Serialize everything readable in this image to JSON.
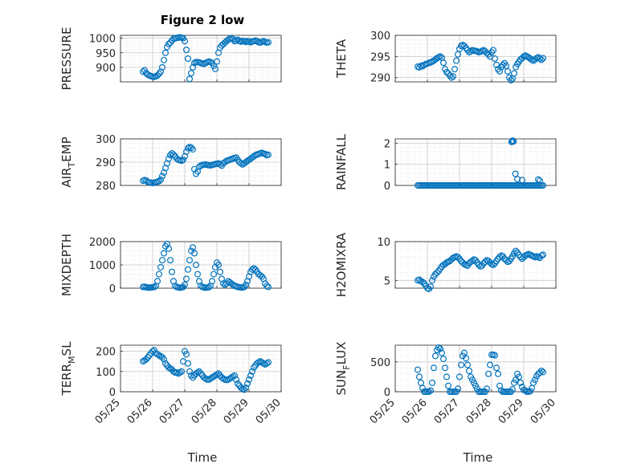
{
  "figure_title": "Figure 2 low",
  "x_axis": {
    "label": "Time",
    "ticks": [
      "05/25",
      "05/26",
      "05/27",
      "05/28",
      "05/29",
      "05/30"
    ],
    "xlim": [
      0,
      5
    ]
  },
  "colors": {
    "marker": "#0072bd",
    "grid": "#dcdcdc",
    "axis": "#262626"
  },
  "chart_data": [
    {
      "type": "scatter",
      "ylabel": "PRESSURE",
      "ylim": [
        850,
        1010
      ],
      "yticks": [
        900,
        950,
        1000
      ],
      "x": [
        0.7,
        0.75,
        0.8,
        0.85,
        0.9,
        0.95,
        1.0,
        1.05,
        1.1,
        1.15,
        1.2,
        1.25,
        1.3,
        1.35,
        1.4,
        1.45,
        1.5,
        1.55,
        1.6,
        1.65,
        1.7,
        1.75,
        1.8,
        1.85,
        1.9,
        1.95,
        2.0,
        2.05,
        2.1,
        2.15,
        2.2,
        2.25,
        2.3,
        2.35,
        2.4,
        2.45,
        2.5,
        2.55,
        2.6,
        2.65,
        2.7,
        2.75,
        2.8,
        2.85,
        2.9,
        2.95,
        3.0,
        3.05,
        3.1,
        3.15,
        3.2,
        3.25,
        3.3,
        3.35,
        3.4,
        3.45,
        3.5,
        3.55,
        3.6,
        3.65,
        3.7,
        3.75,
        3.8,
        3.85,
        3.9,
        3.95,
        4.0,
        4.05,
        4.1,
        4.15,
        4.2,
        4.25,
        4.3,
        4.35,
        4.4,
        4.45,
        4.5,
        4.55,
        4.6
      ],
      "y": [
        885,
        890,
        880,
        875,
        872,
        870,
        868,
        867,
        869,
        872,
        878,
        885,
        900,
        925,
        950,
        970,
        980,
        985,
        992,
        998,
        1000,
        1001,
        1002,
        1003,
        1002,
        1000,
        990,
        960,
        930,
        860,
        880,
        900,
        915,
        918,
        918,
        917,
        915,
        913,
        912,
        915,
        918,
        920,
        918,
        915,
        905,
        895,
        920,
        950,
        968,
        975,
        980,
        985,
        990,
        995,
        998,
        1000,
        997,
        990,
        992,
        995,
        990,
        988,
        991,
        990,
        987,
        990,
        988,
        986,
        989,
        990,
        992,
        990,
        986,
        985,
        988,
        990,
        987,
        985,
        986
      ]
    },
    {
      "type": "scatter",
      "ylabel": "THETA",
      "ylim": [
        289,
        300
      ],
      "yticks": [
        290,
        295,
        300
      ],
      "x": [
        0.7,
        0.75,
        0.8,
        0.85,
        0.9,
        0.95,
        1.0,
        1.05,
        1.1,
        1.15,
        1.2,
        1.25,
        1.3,
        1.35,
        1.4,
        1.45,
        1.5,
        1.55,
        1.6,
        1.65,
        1.7,
        1.75,
        1.8,
        1.85,
        1.9,
        1.95,
        2.0,
        2.05,
        2.1,
        2.15,
        2.2,
        2.25,
        2.3,
        2.35,
        2.4,
        2.45,
        2.5,
        2.55,
        2.6,
        2.65,
        2.7,
        2.75,
        2.8,
        2.85,
        2.9,
        2.95,
        3.0,
        3.05,
        3.1,
        3.15,
        3.2,
        3.25,
        3.3,
        3.35,
        3.4,
        3.45,
        3.5,
        3.55,
        3.6,
        3.65,
        3.7,
        3.75,
        3.8,
        3.85,
        3.9,
        3.95,
        4.0,
        4.05,
        4.1,
        4.15,
        4.2,
        4.25,
        4.3,
        4.35,
        4.4,
        4.45,
        4.5,
        4.55,
        4.6
      ],
      "y": [
        292.6,
        292.4,
        292.8,
        292.7,
        293.0,
        293.2,
        293.3,
        293.5,
        293.6,
        293.8,
        294.0,
        294.3,
        294.6,
        294.8,
        295.0,
        294.7,
        293.5,
        292.0,
        291.3,
        291.0,
        290.5,
        290.0,
        290.3,
        292.0,
        294.0,
        295.5,
        296.8,
        297.5,
        297.7,
        297.5,
        297.0,
        296.5,
        296.0,
        296.2,
        296.5,
        296.4,
        296.3,
        296.2,
        296.0,
        296.1,
        296.3,
        296.5,
        296.2,
        295.8,
        295.5,
        295.0,
        296.0,
        296.5,
        294.5,
        293.0,
        292.0,
        291.5,
        292.5,
        293.0,
        293.4,
        292.8,
        291.5,
        290.0,
        289.4,
        289.8,
        291.0,
        292.5,
        293.2,
        293.8,
        294.3,
        294.6,
        295.0,
        295.2,
        295.0,
        294.8,
        294.5,
        294.2,
        294.0,
        294.3,
        294.6,
        294.8,
        294.5,
        294.2,
        294.6
      ]
    },
    {
      "type": "scatter",
      "ylabel": "AIR_TEMP",
      "ylim": [
        280,
        300
      ],
      "yticks": [
        280,
        290,
        300
      ],
      "x": [
        0.7,
        0.75,
        0.8,
        0.85,
        0.9,
        0.95,
        1.0,
        1.05,
        1.1,
        1.15,
        1.2,
        1.25,
        1.3,
        1.35,
        1.4,
        1.45,
        1.5,
        1.55,
        1.6,
        1.65,
        1.7,
        1.75,
        1.8,
        1.85,
        1.9,
        1.95,
        2.0,
        2.05,
        2.1,
        2.15,
        2.2,
        2.25,
        2.3,
        2.35,
        2.4,
        2.45,
        2.5,
        2.55,
        2.6,
        2.65,
        2.7,
        2.75,
        2.8,
        2.85,
        2.9,
        2.95,
        3.0,
        3.05,
        3.1,
        3.15,
        3.2,
        3.25,
        3.3,
        3.35,
        3.4,
        3.45,
        3.5,
        3.55,
        3.6,
        3.65,
        3.7,
        3.75,
        3.8,
        3.85,
        3.9,
        3.95,
        4.0,
        4.05,
        4.1,
        4.15,
        4.2,
        4.25,
        4.3,
        4.35,
        4.4,
        4.45,
        4.5,
        4.55,
        4.6
      ],
      "y": [
        282.0,
        282.3,
        282.1,
        281.5,
        281.3,
        281.2,
        281.0,
        281.2,
        281.4,
        281.6,
        281.8,
        282.5,
        284.0,
        285.5,
        287.5,
        289.5,
        291.5,
        293.0,
        293.8,
        293.2,
        292.5,
        291.5,
        291.0,
        290.8,
        290.6,
        291.0,
        292.5,
        294.5,
        296.0,
        296.5,
        296.2,
        295.5,
        287.0,
        285.0,
        286.0,
        288.0,
        288.5,
        288.8,
        288.9,
        289.0,
        288.8,
        288.7,
        288.6,
        288.8,
        289.0,
        289.2,
        289.3,
        289.5,
        289.0,
        288.5,
        289.5,
        290.0,
        290.5,
        290.8,
        291.0,
        291.3,
        291.5,
        291.8,
        292.0,
        291.0,
        290.0,
        289.5,
        289.0,
        289.5,
        290.0,
        290.5,
        291.0,
        291.5,
        292.0,
        292.5,
        293.0,
        293.3,
        293.5,
        293.8,
        294.0,
        293.7,
        293.5,
        293.0,
        293.2
      ]
    },
    {
      "type": "scatter",
      "ylabel": "RAINFALL",
      "ylim": [
        0,
        2.2
      ],
      "yticks": [
        0,
        1,
        2
      ],
      "x": [
        0.7,
        0.75,
        0.8,
        0.85,
        0.9,
        0.95,
        1.0,
        1.05,
        1.1,
        1.15,
        1.2,
        1.25,
        1.3,
        1.35,
        1.4,
        1.45,
        1.5,
        1.55,
        1.6,
        1.65,
        1.7,
        1.75,
        1.8,
        1.85,
        1.9,
        1.95,
        2.0,
        2.05,
        2.1,
        2.15,
        2.2,
        2.25,
        2.3,
        2.35,
        2.4,
        2.45,
        2.5,
        2.55,
        2.6,
        2.65,
        2.7,
        2.75,
        2.8,
        2.85,
        2.9,
        2.95,
        3.0,
        3.05,
        3.1,
        3.15,
        3.2,
        3.25,
        3.3,
        3.35,
        3.4,
        3.45,
        3.5,
        3.55,
        3.6,
        3.65,
        3.7,
        3.75,
        3.8,
        3.85,
        3.9,
        3.95,
        4.0,
        4.05,
        4.1,
        4.15,
        4.2,
        4.25,
        4.3,
        4.35,
        4.4,
        4.45,
        4.5,
        4.55,
        4.6,
        3.62,
        3.64,
        3.66,
        3.68,
        3.74,
        3.8,
        3.95,
        4.45,
        4.5
      ],
      "y": [
        0,
        0,
        0,
        0,
        0,
        0,
        0,
        0,
        0,
        0,
        0,
        0,
        0,
        0,
        0,
        0,
        0,
        0,
        0,
        0,
        0,
        0,
        0,
        0,
        0,
        0,
        0,
        0,
        0,
        0,
        0,
        0,
        0,
        0,
        0,
        0,
        0,
        0,
        0,
        0,
        0,
        0,
        0,
        0,
        0,
        0,
        0,
        0,
        0,
        0,
        0,
        0,
        0,
        0,
        0,
        0,
        0,
        0,
        0,
        0,
        0,
        0,
        0,
        0,
        0,
        0,
        0,
        0,
        0,
        0,
        0,
        0,
        0,
        0,
        0,
        0,
        0,
        0,
        0,
        2.05,
        2.1,
        2.12,
        2.08,
        0.55,
        0.3,
        0.25,
        0.28,
        0.22
      ]
    },
    {
      "type": "scatter",
      "ylabel": "MIXDEPTH",
      "ylim": [
        0,
        2000
      ],
      "yticks": [
        0,
        1000,
        2000
      ],
      "x": [
        0.7,
        0.75,
        0.8,
        0.85,
        0.9,
        0.95,
        1.0,
        1.05,
        1.1,
        1.15,
        1.2,
        1.25,
        1.3,
        1.35,
        1.4,
        1.45,
        1.5,
        1.55,
        1.6,
        1.65,
        1.7,
        1.75,
        1.8,
        1.85,
        1.9,
        1.95,
        2.0,
        2.05,
        2.1,
        2.15,
        2.2,
        2.25,
        2.3,
        2.35,
        2.4,
        2.45,
        2.5,
        2.55,
        2.6,
        2.65,
        2.7,
        2.75,
        2.8,
        2.85,
        2.9,
        2.95,
        3.0,
        3.05,
        3.1,
        3.15,
        3.2,
        3.25,
        3.3,
        3.35,
        3.4,
        3.45,
        3.5,
        3.55,
        3.6,
        3.65,
        3.7,
        3.75,
        3.8,
        3.85,
        3.9,
        3.95,
        4.0,
        4.05,
        4.1,
        4.15,
        4.2,
        4.25,
        4.3,
        4.35,
        4.4,
        4.45,
        4.5,
        4.55,
        4.6
      ],
      "y": [
        50,
        60,
        40,
        30,
        20,
        30,
        40,
        50,
        100,
        300,
        600,
        900,
        1200,
        1500,
        1800,
        1900,
        1700,
        1200,
        700,
        300,
        100,
        50,
        30,
        20,
        30,
        50,
        150,
        400,
        800,
        1200,
        1600,
        1750,
        1500,
        1000,
        600,
        300,
        100,
        50,
        30,
        20,
        30,
        40,
        100,
        300,
        600,
        900,
        1100,
        1000,
        700,
        400,
        200,
        150,
        200,
        300,
        250,
        200,
        150,
        100,
        80,
        50,
        40,
        30,
        30,
        50,
        150,
        300,
        500,
        700,
        800,
        850,
        800,
        700,
        600,
        550,
        500,
        400,
        200,
        100,
        50
      ]
    },
    {
      "type": "scatter",
      "ylabel": "H2OMIXRA",
      "ylim": [
        4,
        10
      ],
      "yticks": [
        5,
        10
      ],
      "x": [
        0.7,
        0.75,
        0.8,
        0.85,
        0.9,
        0.95,
        1.0,
        1.05,
        1.1,
        1.15,
        1.2,
        1.25,
        1.3,
        1.35,
        1.4,
        1.45,
        1.5,
        1.55,
        1.6,
        1.65,
        1.7,
        1.75,
        1.8,
        1.85,
        1.9,
        1.95,
        2.0,
        2.05,
        2.1,
        2.15,
        2.2,
        2.25,
        2.3,
        2.35,
        2.4,
        2.45,
        2.5,
        2.55,
        2.6,
        2.65,
        2.7,
        2.75,
        2.8,
        2.85,
        2.9,
        2.95,
        3.0,
        3.05,
        3.1,
        3.15,
        3.2,
        3.25,
        3.3,
        3.35,
        3.4,
        3.45,
        3.5,
        3.55,
        3.6,
        3.65,
        3.7,
        3.75,
        3.8,
        3.85,
        3.9,
        3.95,
        4.0,
        4.05,
        4.1,
        4.15,
        4.2,
        4.25,
        4.3,
        4.35,
        4.4,
        4.45,
        4.5,
        4.55,
        4.6
      ],
      "y": [
        5.0,
        5.1,
        4.9,
        4.8,
        4.6,
        4.3,
        4.0,
        3.9,
        4.2,
        5.0,
        5.5,
        5.8,
        6.0,
        6.2,
        6.5,
        6.8,
        7.0,
        7.1,
        7.3,
        7.4,
        7.5,
        7.7,
        7.9,
        8.0,
        8.1,
        8.0,
        7.8,
        7.5,
        7.3,
        7.1,
        7.0,
        6.9,
        7.2,
        7.4,
        7.5,
        7.7,
        7.6,
        7.3,
        7.0,
        6.8,
        6.9,
        7.2,
        7.4,
        7.6,
        7.5,
        7.3,
        7.1,
        7.0,
        7.2,
        7.5,
        7.8,
        8.0,
        8.2,
        8.1,
        7.8,
        7.6,
        7.4,
        7.5,
        7.8,
        8.1,
        8.5,
        8.8,
        8.6,
        8.3,
        8.0,
        7.8,
        8.0,
        8.2,
        8.3,
        8.4,
        8.3,
        8.2,
        8.1,
        8.0,
        8.1,
        8.0,
        7.9,
        8.2,
        8.3
      ]
    },
    {
      "type": "scatter",
      "ylabel": "TERR_MSL",
      "ylim": [
        0,
        230
      ],
      "yticks": [
        0,
        100,
        200
      ],
      "x": [
        0.7,
        0.75,
        0.8,
        0.85,
        0.9,
        0.95,
        1.0,
        1.05,
        1.1,
        1.15,
        1.2,
        1.25,
        1.3,
        1.35,
        1.4,
        1.45,
        1.5,
        1.55,
        1.6,
        1.65,
        1.7,
        1.75,
        1.8,
        1.85,
        1.9,
        1.95,
        2.0,
        2.05,
        2.1,
        2.15,
        2.2,
        2.25,
        2.3,
        2.35,
        2.4,
        2.45,
        2.5,
        2.55,
        2.6,
        2.65,
        2.7,
        2.75,
        2.8,
        2.85,
        2.9,
        2.95,
        3.0,
        3.05,
        3.1,
        3.15,
        3.2,
        3.25,
        3.3,
        3.35,
        3.4,
        3.45,
        3.5,
        3.55,
        3.6,
        3.65,
        3.7,
        3.75,
        3.8,
        3.85,
        3.9,
        3.95,
        4.0,
        4.05,
        4.1,
        4.15,
        4.2,
        4.25,
        4.3,
        4.35,
        4.4,
        4.45,
        4.5,
        4.55,
        4.6
      ],
      "y": [
        150,
        155,
        160,
        170,
        180,
        190,
        200,
        205,
        190,
        185,
        180,
        175,
        170,
        160,
        140,
        130,
        120,
        115,
        110,
        100,
        95,
        95,
        90,
        95,
        100,
        150,
        200,
        185,
        140,
        100,
        80,
        70,
        80,
        90,
        95,
        100,
        90,
        80,
        70,
        65,
        60,
        60,
        65,
        70,
        75,
        80,
        85,
        90,
        80,
        70,
        65,
        60,
        58,
        60,
        65,
        70,
        75,
        80,
        60,
        40,
        30,
        20,
        15,
        10,
        20,
        40,
        60,
        80,
        100,
        120,
        130,
        140,
        145,
        150,
        145,
        140,
        135,
        140,
        145
      ]
    },
    {
      "type": "scatter",
      "ylabel": "SUN_FLUX",
      "ylim": [
        0,
        780
      ],
      "yticks": [
        0,
        500
      ],
      "x": [
        0.7,
        0.75,
        0.8,
        0.85,
        0.9,
        0.95,
        1.0,
        1.05,
        1.1,
        1.15,
        1.2,
        1.25,
        1.3,
        1.35,
        1.4,
        1.45,
        1.5,
        1.55,
        1.6,
        1.65,
        1.7,
        1.75,
        1.8,
        1.85,
        1.9,
        1.95,
        2.0,
        2.05,
        2.1,
        2.15,
        2.2,
        2.25,
        2.3,
        2.35,
        2.4,
        2.45,
        2.5,
        2.55,
        2.6,
        2.65,
        2.7,
        2.75,
        2.8,
        2.85,
        2.9,
        2.95,
        3.0,
        3.05,
        3.1,
        3.15,
        3.2,
        3.25,
        3.3,
        3.35,
        3.4,
        3.45,
        3.5,
        3.55,
        3.6,
        3.65,
        3.7,
        3.75,
        3.8,
        3.85,
        3.9,
        3.95,
        4.0,
        4.05,
        4.1,
        4.15,
        4.2,
        4.25,
        4.3,
        4.35,
        4.4,
        4.45,
        4.5,
        4.55,
        4.6
      ],
      "y": [
        370,
        250,
        150,
        60,
        0,
        0,
        0,
        0,
        20,
        150,
        400,
        600,
        700,
        740,
        720,
        650,
        550,
        400,
        250,
        100,
        0,
        0,
        0,
        0,
        0,
        50,
        250,
        450,
        600,
        650,
        560,
        450,
        350,
        250,
        200,
        150,
        100,
        50,
        0,
        0,
        0,
        0,
        0,
        50,
        300,
        450,
        620,
        620,
        610,
        400,
        300,
        100,
        20,
        0,
        0,
        0,
        0,
        0,
        0,
        40,
        150,
        200,
        300,
        250,
        150,
        80,
        30,
        20,
        0,
        0,
        10,
        60,
        150,
        200,
        260,
        300,
        320,
        350,
        330
      ]
    }
  ]
}
